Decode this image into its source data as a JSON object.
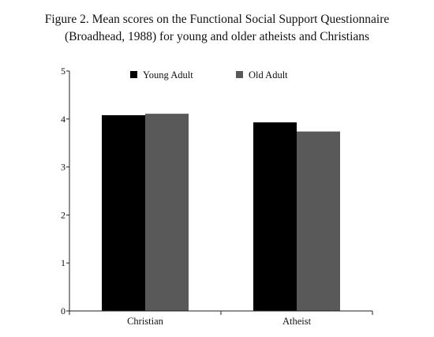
{
  "title_lines": [
    "Figure 2. Mean scores on the Functional Social Support Questionnaire",
    "(Broadhead, 1988) for young and older atheists and Christians"
  ],
  "chart_data": {
    "type": "bar",
    "title": "Figure 2. Mean scores on the Functional Social Support Questionnaire (Broadhead, 1988) for young and older atheists and Christians",
    "categories": [
      "Christian",
      "Atheist"
    ],
    "series": [
      {
        "name": "Young Adult",
        "values": [
          4.08,
          3.93
        ],
        "color": "#000000"
      },
      {
        "name": "Old Adult",
        "values": [
          4.11,
          3.74
        ],
        "color": "#595959"
      }
    ],
    "xlabel": "",
    "ylabel": "",
    "ylim": [
      0,
      5
    ],
    "yticks": [
      "0",
      "1",
      "2",
      "3",
      "4",
      "5"
    ],
    "grid": false,
    "legend": "top-center"
  }
}
